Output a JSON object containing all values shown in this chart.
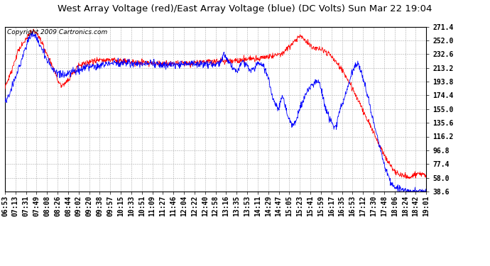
{
  "title": "West Array Voltage (red)/East Array Voltage (blue) (DC Volts) Sun Mar 22 19:04",
  "copyright_text": "Copyright 2009 Cartronics.com",
  "ylabel_ticks": [
    38.6,
    58.0,
    77.4,
    96.8,
    116.2,
    135.6,
    155.0,
    174.4,
    193.8,
    213.2,
    232.6,
    252.0,
    271.4
  ],
  "ylim": [
    38.6,
    271.4
  ],
  "bg_color": "#ffffff",
  "plot_bg_color": "#ffffff",
  "grid_color": "#aaaaaa",
  "red_color": "#ff0000",
  "blue_color": "#0000ff",
  "title_fontsize": 9.5,
  "copyright_fontsize": 6.5,
  "tick_fontsize": 7,
  "x_tick_labels": [
    "06:53",
    "07:13",
    "07:31",
    "07:49",
    "08:08",
    "08:26",
    "08:44",
    "09:02",
    "09:20",
    "09:38",
    "09:57",
    "10:15",
    "10:33",
    "10:51",
    "11:09",
    "11:27",
    "11:46",
    "12:04",
    "12:22",
    "12:40",
    "12:58",
    "13:16",
    "13:35",
    "13:53",
    "14:11",
    "14:29",
    "14:47",
    "15:05",
    "15:23",
    "15:41",
    "15:59",
    "16:17",
    "16:35",
    "16:53",
    "17:12",
    "17:30",
    "17:48",
    "18:06",
    "18:24",
    "18:42",
    "19:01"
  ]
}
